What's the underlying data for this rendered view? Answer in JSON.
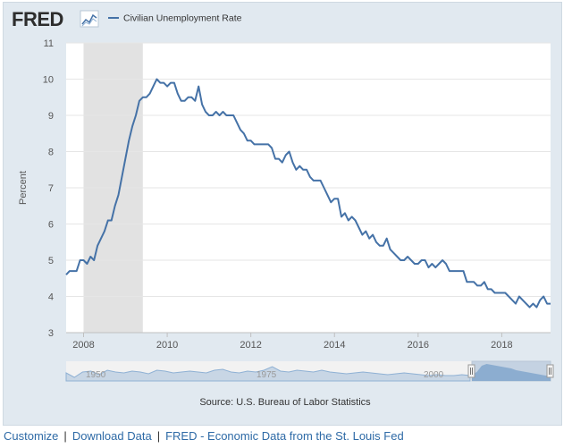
{
  "brand": {
    "name": "FRED"
  },
  "chart_data": {
    "type": "line",
    "title": "",
    "xlabel": "",
    "ylabel": "Percent",
    "ylim": [
      3,
      11
    ],
    "yticks": [
      3,
      4,
      5,
      6,
      7,
      8,
      9,
      10,
      11
    ],
    "xlim": [
      "2007-08",
      "2019-03"
    ],
    "xticks": [
      "2008",
      "2010",
      "2012",
      "2014",
      "2016",
      "2018"
    ],
    "grid": true,
    "legend": "top-left",
    "recession": {
      "start": "2008-01",
      "end": "2009-06",
      "color": "#e2e2e2"
    },
    "series": [
      {
        "name": "Civilian Unemployment Rate",
        "color": "#4572a7",
        "start": "2007-08",
        "values": [
          4.6,
          4.7,
          4.7,
          4.7,
          5.0,
          5.0,
          4.9,
          5.1,
          5.0,
          5.4,
          5.6,
          5.8,
          6.1,
          6.1,
          6.5,
          6.8,
          7.3,
          7.8,
          8.3,
          8.7,
          9.0,
          9.4,
          9.5,
          9.5,
          9.6,
          9.8,
          10.0,
          9.9,
          9.9,
          9.8,
          9.9,
          9.9,
          9.6,
          9.4,
          9.4,
          9.5,
          9.5,
          9.4,
          9.8,
          9.3,
          9.1,
          9.0,
          9.0,
          9.1,
          9.0,
          9.1,
          9.0,
          9.0,
          9.0,
          8.8,
          8.6,
          8.5,
          8.3,
          8.3,
          8.2,
          8.2,
          8.2,
          8.2,
          8.2,
          8.1,
          7.8,
          7.8,
          7.7,
          7.9,
          8.0,
          7.7,
          7.5,
          7.6,
          7.5,
          7.5,
          7.3,
          7.2,
          7.2,
          7.2,
          7.0,
          6.8,
          6.6,
          6.7,
          6.7,
          6.2,
          6.3,
          6.1,
          6.2,
          6.1,
          5.9,
          5.7,
          5.8,
          5.6,
          5.7,
          5.5,
          5.4,
          5.4,
          5.6,
          5.3,
          5.2,
          5.1,
          5.0,
          5.0,
          5.1,
          5.0,
          4.9,
          4.9,
          5.0,
          5.0,
          4.8,
          4.9,
          4.8,
          4.9,
          5.0,
          4.9,
          4.7,
          4.7,
          4.7,
          4.7,
          4.7,
          4.4,
          4.4,
          4.4,
          4.3,
          4.3,
          4.4,
          4.2,
          4.2,
          4.1,
          4.1,
          4.1,
          4.1,
          4.0,
          3.9,
          3.8,
          4.0,
          3.9,
          3.8,
          3.7,
          3.8,
          3.7,
          3.9,
          4.0,
          3.8,
          3.8
        ]
      }
    ],
    "navigator": {
      "labels": [
        "1950",
        "1975",
        "2000"
      ]
    }
  },
  "source": "Source: U.S. Bureau of Labor Statistics",
  "footer": {
    "links": [
      "Customize",
      "Download Data",
      "FRED - Economic Data from the St. Louis Fed"
    ],
    "separator": "|"
  },
  "colors": {
    "accent": "#4572a7",
    "link": "#2e6aa6"
  }
}
